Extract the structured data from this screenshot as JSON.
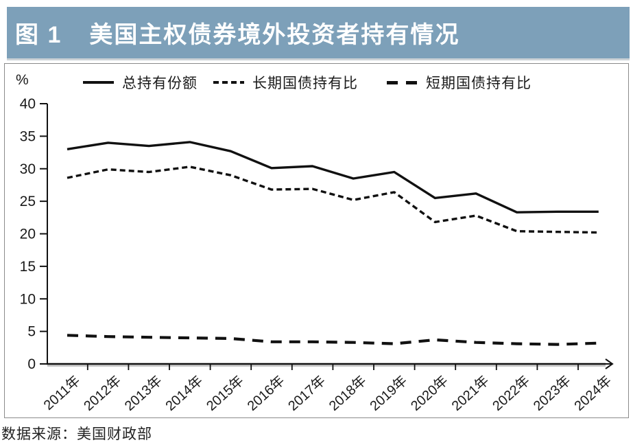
{
  "title_bar": {
    "figure_label": "图 1",
    "title": "美国主权债券境外投资者持有情况",
    "bg_color": "#7da0b9",
    "text_color": "#ffffff"
  },
  "chart": {
    "unit_label": "%",
    "legend": [
      {
        "label": "总持有份额",
        "style": "solid"
      },
      {
        "label": "长期国债持有比",
        "style": "dashed-small"
      },
      {
        "label": "短期国债持有比",
        "style": "dashed-wide"
      }
    ],
    "line_color": "#111111",
    "frame_border_color": "#8a8a8a"
  },
  "chart_data": {
    "type": "line",
    "title": "美国主权债券境外投资者持有情况",
    "xlabel": "",
    "ylabel": "%",
    "ylim": [
      0,
      40
    ],
    "ytick_step": 5,
    "yticks": [
      0,
      5,
      10,
      15,
      20,
      25,
      30,
      35,
      40
    ],
    "grid": false,
    "legend_position": "top",
    "x_axis_arrow": true,
    "categories": [
      "2011年",
      "2012年",
      "2013年",
      "2014年",
      "2015年",
      "2016年",
      "2017年",
      "2018年",
      "2019年",
      "2020年",
      "2021年",
      "2022年",
      "2023年",
      "2024年"
    ],
    "series": [
      {
        "name": "总持有份额",
        "style": "solid",
        "values": [
          33.0,
          34.0,
          33.5,
          34.1,
          32.7,
          30.1,
          30.4,
          28.5,
          29.5,
          25.5,
          26.2,
          23.3,
          23.4,
          23.4
        ]
      },
      {
        "name": "长期国债持有比",
        "style": "dashed_small",
        "values": [
          28.6,
          29.9,
          29.5,
          30.3,
          29.0,
          26.8,
          26.9,
          25.2,
          26.4,
          21.8,
          22.8,
          20.4,
          20.3,
          20.2
        ]
      },
      {
        "name": "短期国债持有比",
        "style": "dashed_wide",
        "values": [
          4.4,
          4.2,
          4.1,
          4.0,
          3.9,
          3.4,
          3.4,
          3.3,
          3.1,
          3.7,
          3.3,
          3.1,
          3.0,
          3.2
        ]
      }
    ]
  },
  "source_note": "数据来源：美国财政部"
}
